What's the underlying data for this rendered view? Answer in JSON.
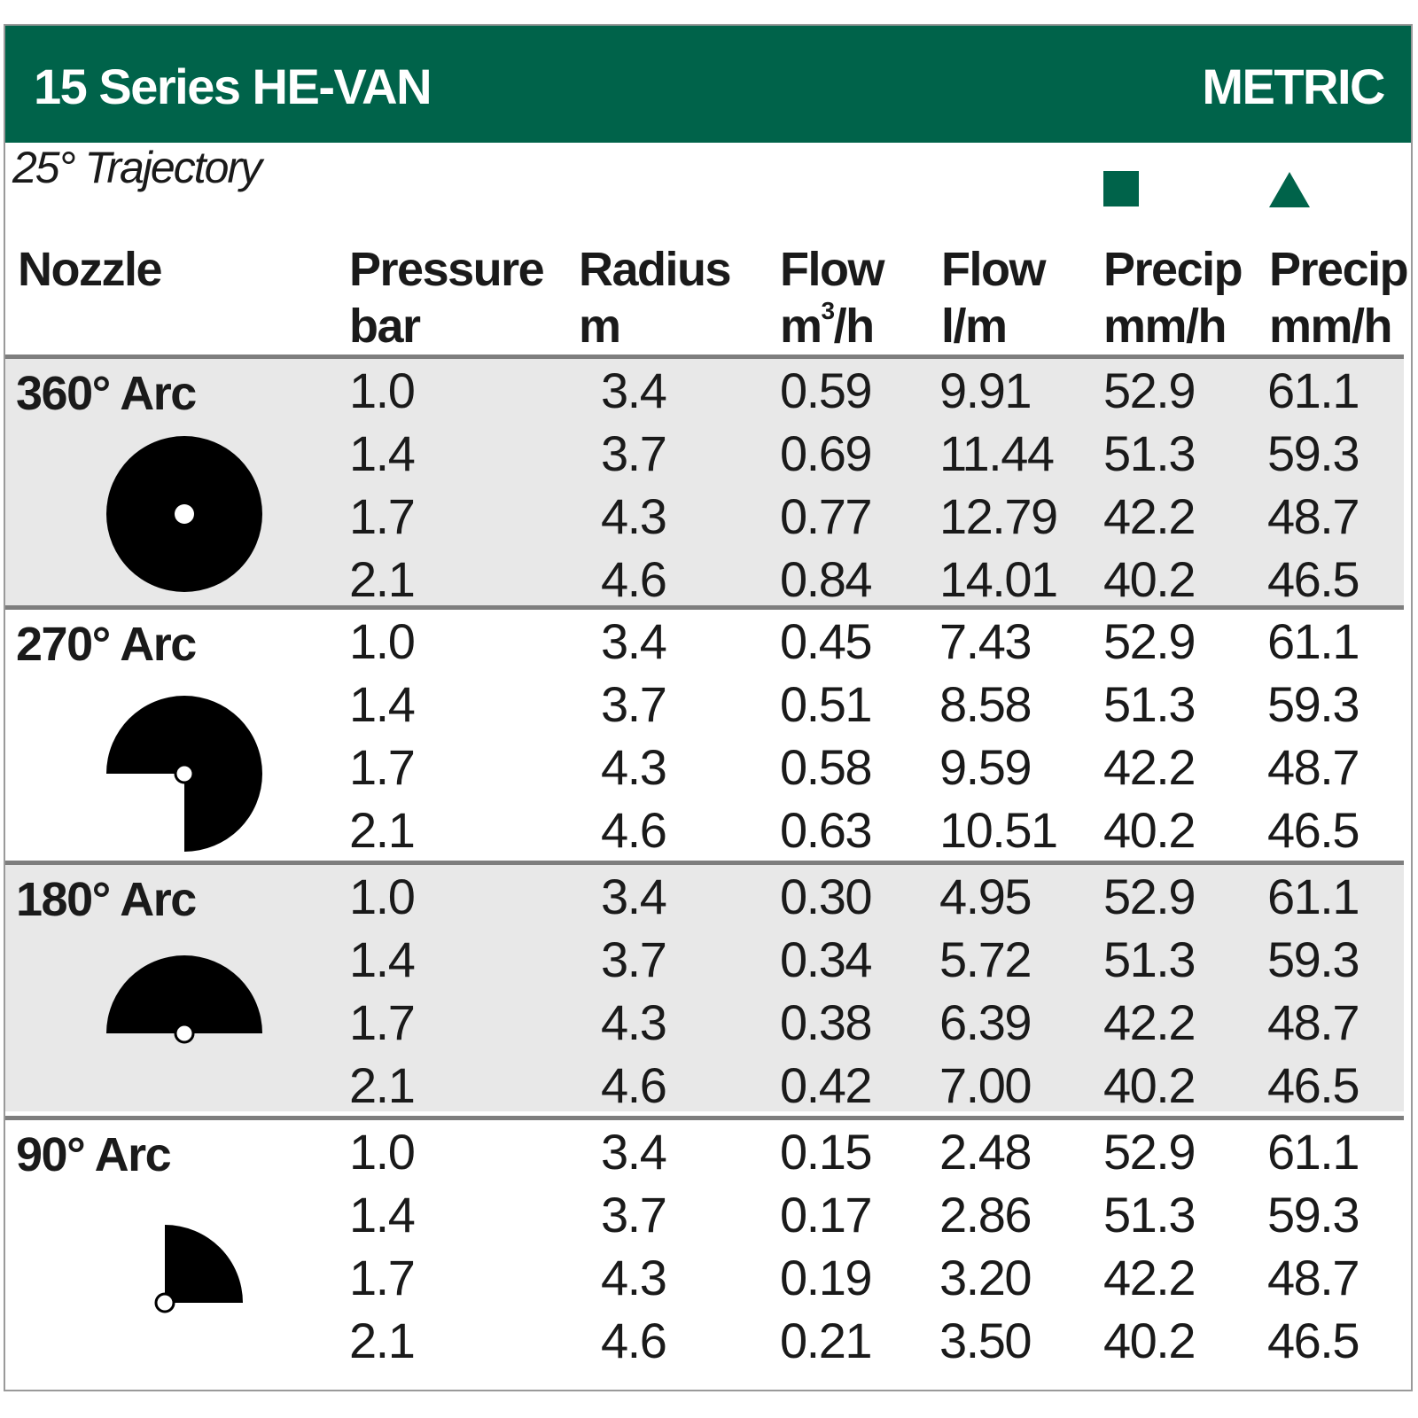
{
  "header": {
    "title": "15 Series HE-VAN",
    "units": "METRIC",
    "accent_color": "#00634a"
  },
  "trajectory": "25° Trajectory",
  "columns": {
    "nozzle": {
      "line1": "Nozzle",
      "line2": ""
    },
    "pressure": {
      "line1": "Pressure",
      "line2": "bar"
    },
    "radius": {
      "line1": "Radius",
      "line2": "m"
    },
    "flow_m3h": {
      "line1": "Flow",
      "line2": "m",
      "sup": "3",
      "line2_tail": "/h"
    },
    "flow_lm": {
      "line1": "Flow",
      "line2": "l/m"
    },
    "precip_square": {
      "line1": "Precip",
      "line2": "mm/h",
      "marker": "square-marker-icon"
    },
    "precip_triangle": {
      "line1": "Precip",
      "line2": "mm/h",
      "marker": "triangle-marker-icon"
    }
  },
  "groups": [
    {
      "label": "360° Arc",
      "icon": "arc-360-icon",
      "rows": [
        {
          "pressure": "1.0",
          "radius": "3.4",
          "flow_m3h": "0.59",
          "flow_lm": "9.91",
          "precip_sq": "52.9",
          "precip_tri": "61.1"
        },
        {
          "pressure": "1.4",
          "radius": "3.7",
          "flow_m3h": "0.69",
          "flow_lm": "11.44",
          "precip_sq": "51.3",
          "precip_tri": "59.3"
        },
        {
          "pressure": "1.7",
          "radius": "4.3",
          "flow_m3h": "0.77",
          "flow_lm": "12.79",
          "precip_sq": "42.2",
          "precip_tri": "48.7"
        },
        {
          "pressure": "2.1",
          "radius": "4.6",
          "flow_m3h": "0.84",
          "flow_lm": "14.01",
          "precip_sq": "40.2",
          "precip_tri": "46.5"
        }
      ]
    },
    {
      "label": "270° Arc",
      "icon": "arc-270-icon",
      "rows": [
        {
          "pressure": "1.0",
          "radius": "3.4",
          "flow_m3h": "0.45",
          "flow_lm": "7.43",
          "precip_sq": "52.9",
          "precip_tri": "61.1"
        },
        {
          "pressure": "1.4",
          "radius": "3.7",
          "flow_m3h": "0.51",
          "flow_lm": "8.58",
          "precip_sq": "51.3",
          "precip_tri": "59.3"
        },
        {
          "pressure": "1.7",
          "radius": "4.3",
          "flow_m3h": "0.58",
          "flow_lm": "9.59",
          "precip_sq": "42.2",
          "precip_tri": "48.7"
        },
        {
          "pressure": "2.1",
          "radius": "4.6",
          "flow_m3h": "0.63",
          "flow_lm": "10.51",
          "precip_sq": "40.2",
          "precip_tri": "46.5"
        }
      ]
    },
    {
      "label": "180° Arc",
      "icon": "arc-180-icon",
      "rows": [
        {
          "pressure": "1.0",
          "radius": "3.4",
          "flow_m3h": "0.30",
          "flow_lm": "4.95",
          "precip_sq": "52.9",
          "precip_tri": "61.1"
        },
        {
          "pressure": "1.4",
          "radius": "3.7",
          "flow_m3h": "0.34",
          "flow_lm": "5.72",
          "precip_sq": "51.3",
          "precip_tri": "59.3"
        },
        {
          "pressure": "1.7",
          "radius": "4.3",
          "flow_m3h": "0.38",
          "flow_lm": "6.39",
          "precip_sq": "42.2",
          "precip_tri": "48.7"
        },
        {
          "pressure": "2.1",
          "radius": "4.6",
          "flow_m3h": "0.42",
          "flow_lm": "7.00",
          "precip_sq": "40.2",
          "precip_tri": "46.5"
        }
      ]
    },
    {
      "label": "90° Arc",
      "icon": "arc-90-icon",
      "rows": [
        {
          "pressure": "1.0",
          "radius": "3.4",
          "flow_m3h": "0.15",
          "flow_lm": "2.48",
          "precip_sq": "52.9",
          "precip_tri": "61.1"
        },
        {
          "pressure": "1.4",
          "radius": "3.7",
          "flow_m3h": "0.17",
          "flow_lm": "2.86",
          "precip_sq": "51.3",
          "precip_tri": "59.3"
        },
        {
          "pressure": "1.7",
          "radius": "4.3",
          "flow_m3h": "0.19",
          "flow_lm": "3.20",
          "precip_sq": "42.2",
          "precip_tri": "48.7"
        },
        {
          "pressure": "2.1",
          "radius": "4.6",
          "flow_m3h": "0.21",
          "flow_lm": "3.50",
          "precip_sq": "40.2",
          "precip_tri": "46.5"
        }
      ]
    }
  ]
}
